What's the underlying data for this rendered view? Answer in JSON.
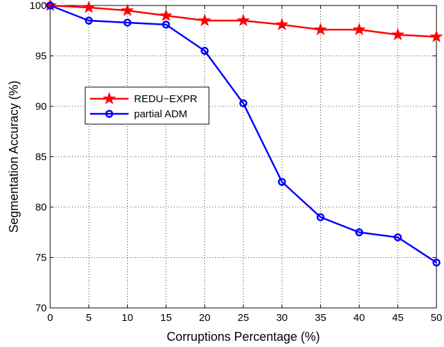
{
  "chart_data": {
    "type": "line",
    "title": "",
    "xlabel": "Corruptions Percentage (%)",
    "ylabel": "Segmentation Accuracy (%)",
    "xlim": [
      0,
      50
    ],
    "ylim": [
      70,
      100
    ],
    "xticks": [
      0,
      5,
      10,
      15,
      20,
      25,
      30,
      35,
      40,
      45,
      50
    ],
    "yticks": [
      70,
      75,
      80,
      85,
      90,
      95,
      100
    ],
    "grid": true,
    "legend_position": "center-left",
    "x": [
      0,
      5,
      10,
      15,
      20,
      25,
      30,
      35,
      40,
      45,
      50
    ],
    "series": [
      {
        "name": "REDU−EXPR",
        "color": "#ff0000",
        "marker": "star",
        "values": [
          100,
          99.8,
          99.5,
          99.0,
          98.5,
          98.5,
          98.1,
          97.6,
          97.6,
          97.1,
          96.9
        ]
      },
      {
        "name": "partial ADM",
        "color": "#0000ff",
        "marker": "circle",
        "values": [
          100,
          98.5,
          98.3,
          98.1,
          95.5,
          90.3,
          82.5,
          79.0,
          77.5,
          77.0,
          74.5
        ]
      }
    ]
  }
}
